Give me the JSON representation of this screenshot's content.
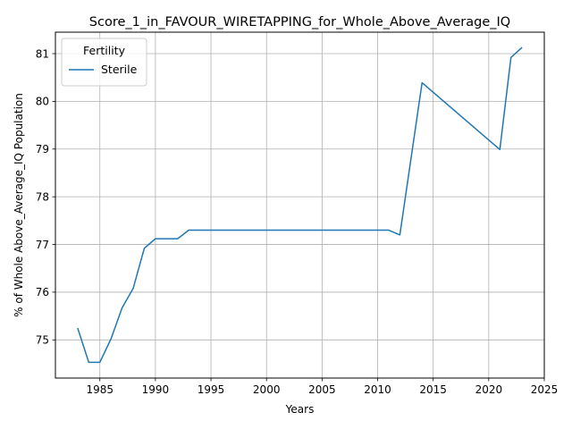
{
  "chart_data": {
    "type": "line",
    "title": "Score_1_in_FAVOUR_WIRETAPPING_for_Whole_Above_Average_IQ",
    "xlabel": "Years",
    "ylabel": "% of Whole Above_Average_IQ Population",
    "xlim": [
      1981.0,
      2025.0
    ],
    "ylim": [
      74.2,
      81.45
    ],
    "xticks": [
      1985,
      1990,
      1995,
      2000,
      2005,
      2010,
      2015,
      2020,
      2025
    ],
    "yticks": [
      75,
      76,
      77,
      78,
      79,
      80,
      81
    ],
    "grid": true,
    "legend": {
      "title": "Fertility",
      "position": "upper-left"
    },
    "series": [
      {
        "name": "Sterile",
        "color": "#1f77b4",
        "x": [
          1983,
          1984,
          1985,
          1986,
          1987,
          1988,
          1989,
          1990,
          1991,
          1992,
          1993,
          2011,
          2012,
          2014,
          2021,
          2022,
          2023
        ],
        "y": [
          75.25,
          74.53,
          74.53,
          75.02,
          75.67,
          76.08,
          76.92,
          77.12,
          77.12,
          77.12,
          77.3,
          77.3,
          77.2,
          80.39,
          78.99,
          80.92,
          81.13
        ]
      }
    ]
  }
}
